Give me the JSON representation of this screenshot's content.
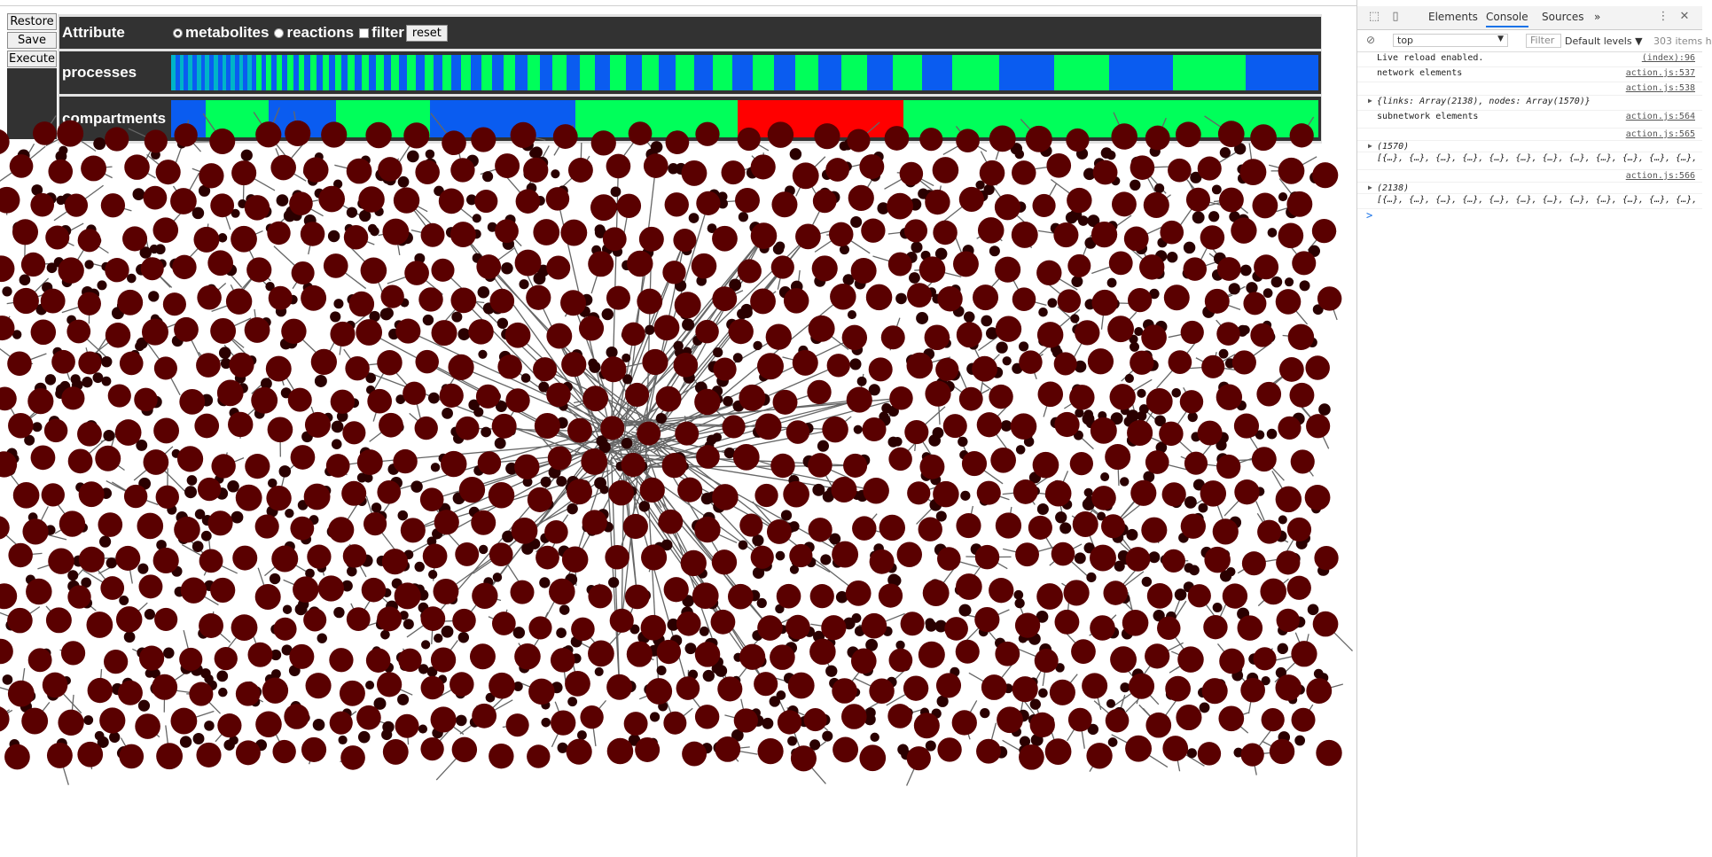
{
  "controls": {
    "restore_label": "Restore",
    "save_label": "Save",
    "execute_label": "Execute"
  },
  "table": {
    "attribute_label": "Attribute",
    "processes_label": "processes",
    "compartments_label": "compartments",
    "options": {
      "metabolites": "metabolites",
      "reactions": "reactions",
      "filter": "filter",
      "reset": "reset",
      "selected": "metabolites"
    }
  },
  "colors": {
    "dark_bg": "#323232",
    "blue": "#0a5cf0",
    "green": "#00ff5a",
    "teal": "#00b4c8",
    "red": "#ff0000",
    "node": "#5a0000",
    "small_node": "#2a0000",
    "link": "#666666"
  },
  "processes_strip": {
    "blocks": [
      "teal",
      "blue",
      "teal",
      "blue",
      "teal",
      "blue",
      "teal",
      "blue",
      "teal",
      "blue",
      "teal",
      "blue",
      "teal",
      "blue",
      "teal",
      "blue",
      "teal",
      "blue",
      "teal",
      "blue",
      "green",
      "blue",
      "green",
      "blue",
      "green",
      "blue",
      "green",
      "blue",
      "green",
      "blue",
      "green",
      "blue",
      "green",
      "blue",
      "green",
      "blue",
      "green",
      "blue",
      "green",
      "blue",
      "green",
      "blue",
      "green",
      "blue",
      "green",
      "blue",
      "green",
      "blue",
      "green",
      "blue",
      "green",
      "blue",
      "green",
      "blue",
      "green",
      "blue",
      "green",
      "blue",
      "green",
      "blue",
      "green",
      "blue",
      "green",
      "blue",
      "green",
      "blue",
      "green",
      "blue",
      "green",
      "blue",
      "green",
      "blue",
      "green",
      "blue",
      "green",
      "blue",
      "green",
      "blue",
      "green",
      "blue",
      "green",
      "blue",
      "green",
      "blue"
    ],
    "weights": [
      1,
      1,
      1,
      1,
      1,
      1,
      1,
      1,
      1,
      1,
      1,
      1,
      1,
      1,
      1,
      1,
      1,
      1,
      1,
      1,
      1.2,
      1.2,
      1.2,
      1.2,
      1.3,
      1.3,
      1.3,
      1.3,
      1.4,
      1.4,
      1.4,
      1.4,
      1.5,
      1.5,
      1.5,
      1.5,
      1.6,
      1.6,
      1.7,
      1.7,
      1.8,
      1.8,
      1.9,
      1.9,
      2,
      2,
      2.1,
      2.1,
      2.2,
      2.2,
      2.4,
      2.4,
      2.6,
      2.6,
      2.8,
      2.8,
      3,
      3,
      3.2,
      3.2,
      3.5,
      3.5,
      3.8,
      3.8,
      4,
      4,
      4.3,
      4.3,
      4.7,
      4.7,
      5,
      5,
      5.5,
      5.5,
      6,
      6,
      7,
      7,
      11,
      13,
      13,
      15,
      17,
      17
    ]
  },
  "compartments_strip": {
    "blocks": [
      "blue",
      "green",
      "blue",
      "green",
      "blue",
      "green",
      "red",
      "green"
    ],
    "weights": [
      32,
      58,
      62,
      87,
      134,
      150,
      153,
      382
    ]
  },
  "network": {
    "big_nodes": 1570,
    "links_count": 2138
  },
  "devtools": {
    "tabs": [
      "Elements",
      "Console",
      "Sources"
    ],
    "more": "»",
    "context": "top",
    "filter_placeholder": "Filter",
    "levels": "Default levels ▼",
    "items": "303 items h",
    "log": [
      {
        "msg": "Live reload enabled.",
        "src": "(index):96"
      },
      {
        "msg": "network elements",
        "src": "action.js:537"
      },
      {
        "msg": "",
        "src": "action.js:538"
      },
      {
        "msg": "{links: Array(2138), nodes: Array(1570)}",
        "src": ""
      },
      {
        "msg": "subnetwork elements",
        "src": "action.js:564"
      },
      {
        "msg": "",
        "src": "action.js:565"
      },
      {
        "msg": "(1570)",
        "src": ""
      },
      {
        "msg": "[{…}, {…}, {…}, {…}, {…}, {…}, {…}, {…}, {…}, {…}, {…}, {…},",
        "src": ""
      },
      {
        "msg": "",
        "src": "action.js:566"
      },
      {
        "msg": "(2138)",
        "src": ""
      },
      {
        "msg": "[{…}, {…}, {…}, {…}, {…}, {…}, {…}, {…}, {…}, {…}, {…}, {…},",
        "src": ""
      }
    ],
    "prompt": ">"
  }
}
